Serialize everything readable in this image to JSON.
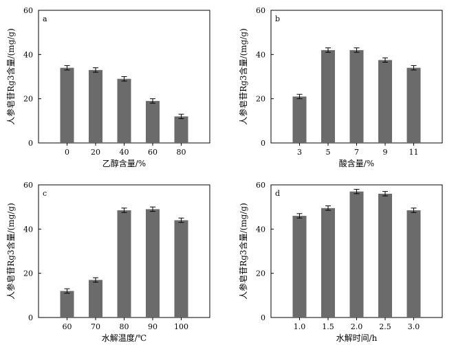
{
  "chart_data": [
    {
      "panel": "a",
      "type": "bar",
      "categories": [
        "0",
        "20",
        "40",
        "60",
        "80"
      ],
      "values": [
        34,
        33,
        29,
        19,
        12
      ],
      "errors": [
        1,
        1,
        1,
        1,
        1
      ],
      "xlabel": "乙醇含量/%",
      "ylabel": "人参皂苷Rg3含量/(mg/g)",
      "ylim": [
        0,
        60
      ],
      "yticks": [
        "0",
        "20",
        "40",
        "60"
      ],
      "bar_color": "#6b6b6b",
      "grid": false
    },
    {
      "panel": "b",
      "type": "bar",
      "categories": [
        "3",
        "5",
        "7",
        "9",
        "11"
      ],
      "values": [
        21,
        42,
        42,
        37.5,
        34
      ],
      "errors": [
        1,
        1,
        1,
        1,
        1
      ],
      "xlabel": "酸含量/%",
      "ylabel": "人参皂苷Rg3含量/(mg/g)",
      "ylim": [
        0,
        60
      ],
      "yticks": [
        "0",
        "20",
        "40",
        "60"
      ],
      "bar_color": "#6b6b6b",
      "grid": false
    },
    {
      "panel": "c",
      "type": "bar",
      "categories": [
        "60",
        "70",
        "80",
        "90",
        "100"
      ],
      "values": [
        12,
        17,
        48.5,
        49,
        44
      ],
      "errors": [
        1,
        1,
        1,
        1,
        1
      ],
      "xlabel": "水解温度/℃",
      "ylabel": "人参皂苷Rg3含量/(mg/g)",
      "ylim": [
        0,
        60
      ],
      "yticks": [
        "0",
        "20",
        "40",
        "60"
      ],
      "bar_color": "#6b6b6b",
      "grid": false
    },
    {
      "panel": "d",
      "type": "bar",
      "categories": [
        "1.0",
        "1.5",
        "2.0",
        "2.5",
        "3.0"
      ],
      "values": [
        46,
        49.5,
        57,
        56,
        48.5
      ],
      "errors": [
        1,
        1,
        1,
        1,
        1
      ],
      "xlabel": "水解时间/h",
      "ylabel": "人参皂苷Rg3含量/(mg/g)",
      "ylim": [
        0,
        60
      ],
      "yticks": [
        "0",
        "20",
        "40",
        "60"
      ],
      "bar_color": "#6b6b6b",
      "grid": false
    }
  ]
}
